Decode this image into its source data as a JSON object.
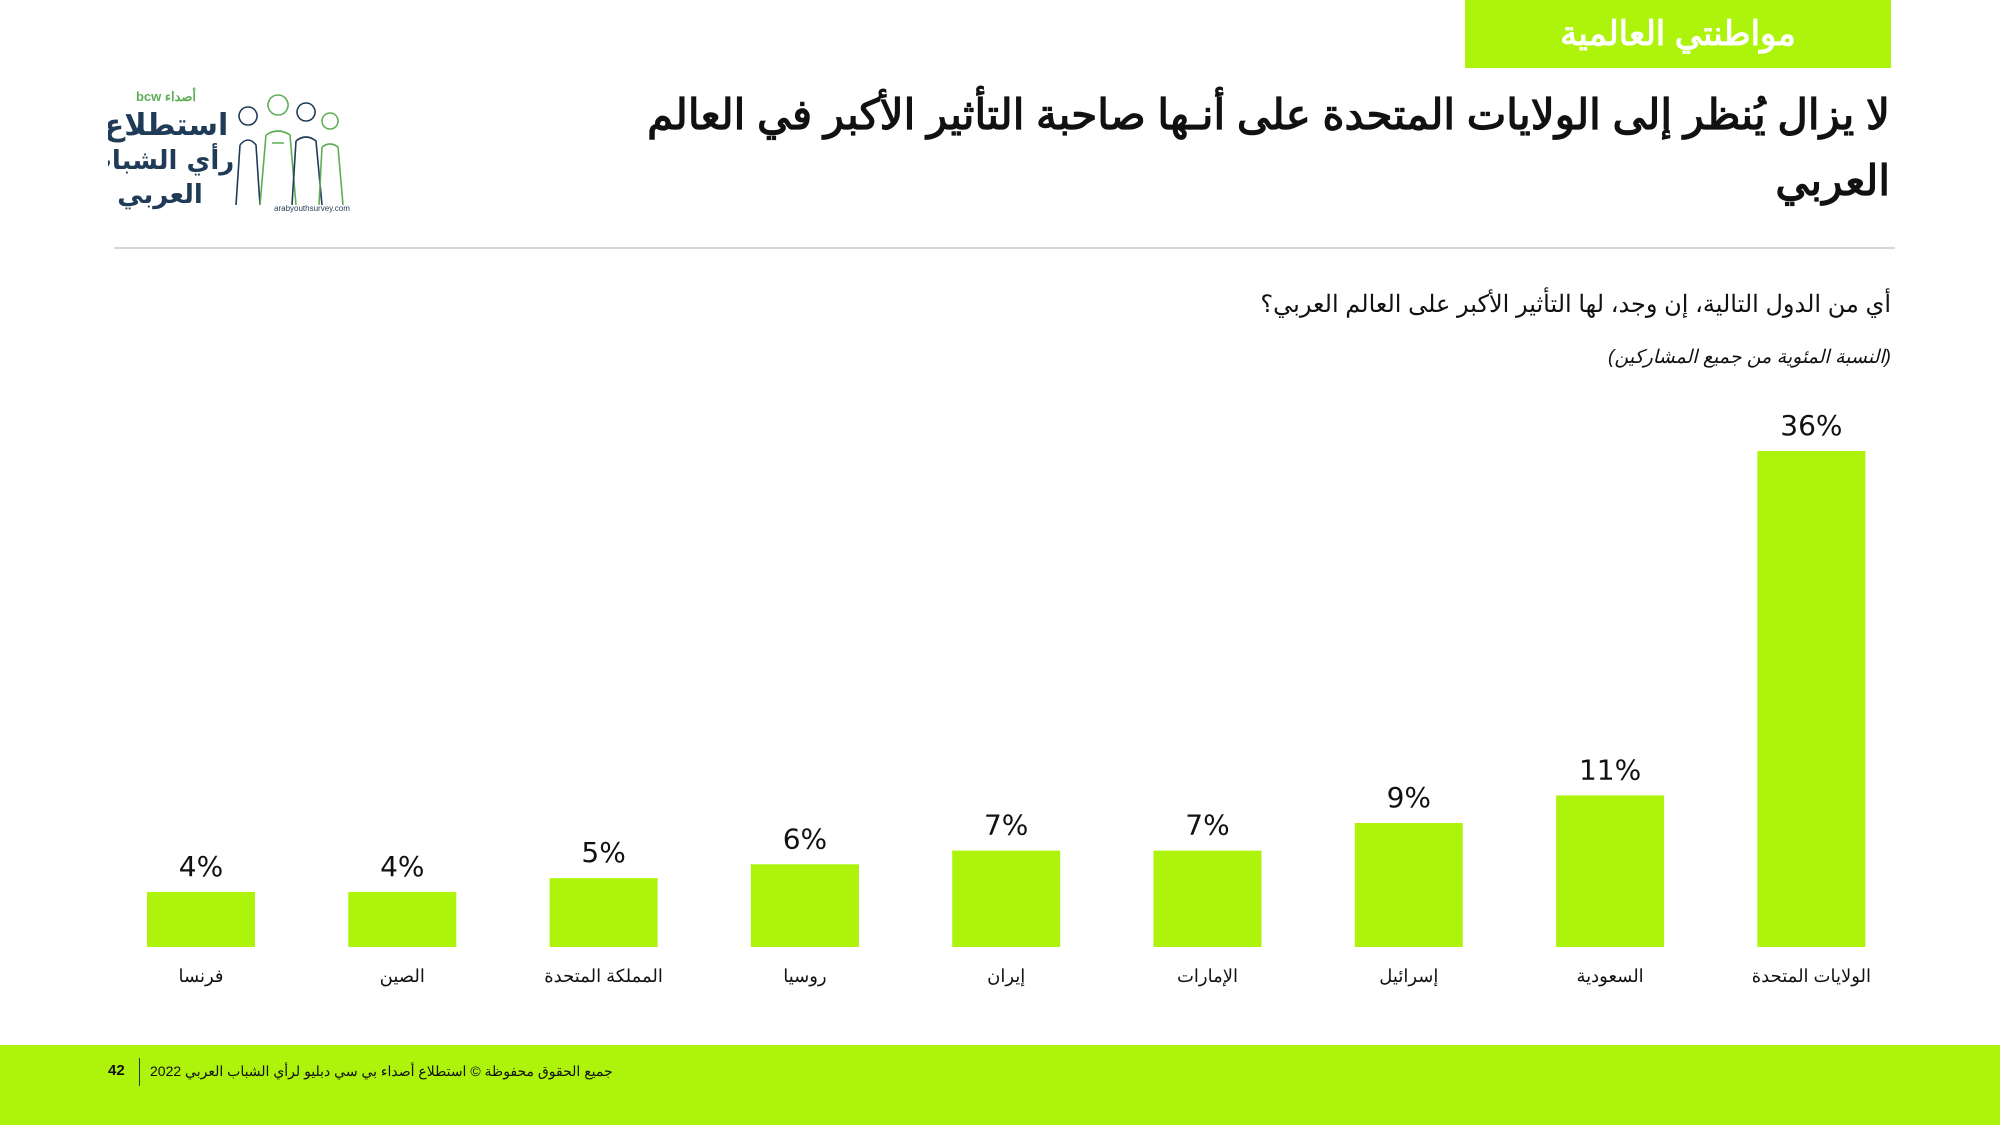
{
  "header": {
    "section_tag": "مواطنتي العالمية",
    "title": "لا يزال يُنظر إلى الولايات المتحدة على أنـها صاحبة التأثير الأكبر في العالم العربي"
  },
  "logo": {
    "brand_top": "bcw أصداء",
    "name_line1": "استطلاع",
    "name_line2": "رأي الشباب",
    "name_line3": "العربي",
    "url": "arabyouthsurvey.com"
  },
  "question": "أي من الدول التالية، إن وجد، لها التأثير الأكبر على العالم العربي؟",
  "note": "(النسبة المئوية من جميع المشاركين)",
  "chart_data": {
    "type": "bar",
    "categories": [
      "فرنسا",
      "الصين",
      "المملكة المتحدة",
      "روسيا",
      "إيران",
      "الإمارات",
      "إسرائيل",
      "السعودية",
      "الولايات المتحدة"
    ],
    "values": [
      4,
      4,
      5,
      6,
      7,
      7,
      9,
      11,
      36
    ],
    "labels": [
      "4%",
      "4%",
      "5%",
      "6%",
      "7%",
      "7%",
      "9%",
      "11%",
      "36%"
    ],
    "title": "",
    "xlabel": "",
    "ylabel": "",
    "ylim": [
      0,
      36
    ],
    "grid": false,
    "bar_color": "#aef30c"
  },
  "footer": {
    "page_number": "42",
    "copyright": "جميع الحقوق محفوظة © استطلاع أصداء بي سي دبليو لرأي الشباب العربي 2022"
  },
  "colors": {
    "accent": "#aef30c",
    "text": "#111111",
    "logo_navy": "#1f3b57",
    "logo_green": "#5fae57"
  }
}
